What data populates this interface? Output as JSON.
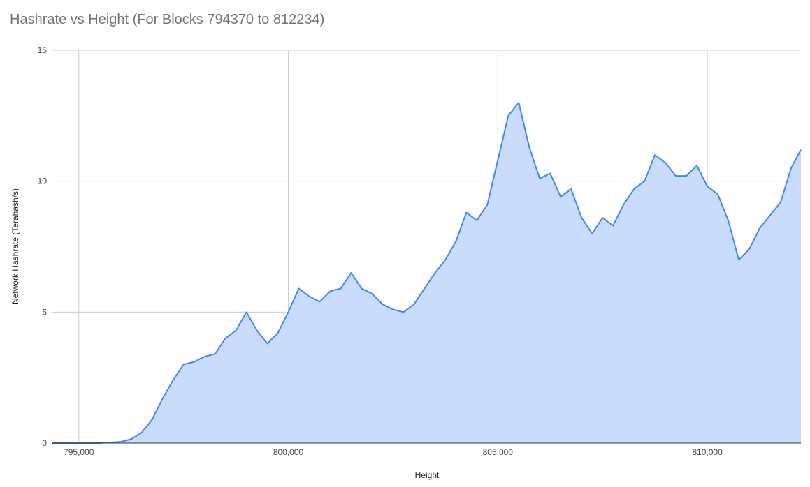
{
  "chart_data": {
    "type": "area",
    "title": "Hashrate vs Height (For Blocks 794370 to 812234)",
    "x_label": "Height",
    "y_label": "Network Hashrate (Terahash/s)",
    "color": "#4285f4",
    "fill_color": "#c6dafc",
    "grid": true,
    "xlim": [
      794370,
      812234
    ],
    "ylim": [
      0,
      15
    ],
    "xticks": [
      {
        "value": 795000,
        "label": "795,000"
      },
      {
        "value": 800000,
        "label": "800,000"
      },
      {
        "value": 805000,
        "label": "805,000"
      },
      {
        "value": 810000,
        "label": "810,000"
      }
    ],
    "yticks": [
      0,
      5,
      10,
      15
    ],
    "x": [
      794370,
      795000,
      795500,
      796000,
      796250,
      796500,
      796750,
      797000,
      797250,
      797500,
      797750,
      798000,
      798250,
      798500,
      798750,
      799000,
      799250,
      799500,
      799750,
      800000,
      800250,
      800500,
      800750,
      801000,
      801250,
      801500,
      801750,
      802000,
      802250,
      802500,
      802750,
      803000,
      803250,
      803500,
      803750,
      804000,
      804250,
      804500,
      804750,
      805000,
      805250,
      805500,
      805750,
      806000,
      806250,
      806500,
      806750,
      807000,
      807250,
      807500,
      807750,
      808000,
      808250,
      808500,
      808750,
      809000,
      809250,
      809500,
      809750,
      810000,
      810250,
      810500,
      810750,
      811000,
      811250,
      811500,
      811750,
      812000,
      812234
    ],
    "values": [
      0,
      0,
      0,
      0.05,
      0.15,
      0.4,
      0.9,
      1.7,
      2.4,
      3.0,
      3.1,
      3.3,
      3.4,
      4.0,
      4.3,
      5.0,
      4.3,
      3.8,
      4.2,
      5.0,
      5.9,
      5.6,
      5.4,
      5.8,
      5.9,
      6.5,
      5.9,
      5.7,
      5.3,
      5.1,
      5.0,
      5.3,
      5.9,
      6.5,
      7.0,
      7.7,
      8.8,
      8.5,
      9.1,
      10.8,
      12.5,
      13.0,
      11.3,
      10.1,
      10.3,
      9.4,
      9.7,
      8.6,
      8.0,
      8.6,
      8.3,
      9.1,
      9.7,
      10.0,
      11.0,
      10.7,
      10.2,
      10.2,
      10.6,
      9.8,
      9.5,
      8.5,
      7.0,
      7.4,
      8.2,
      8.7,
      9.2,
      10.5,
      11.2
    ]
  }
}
